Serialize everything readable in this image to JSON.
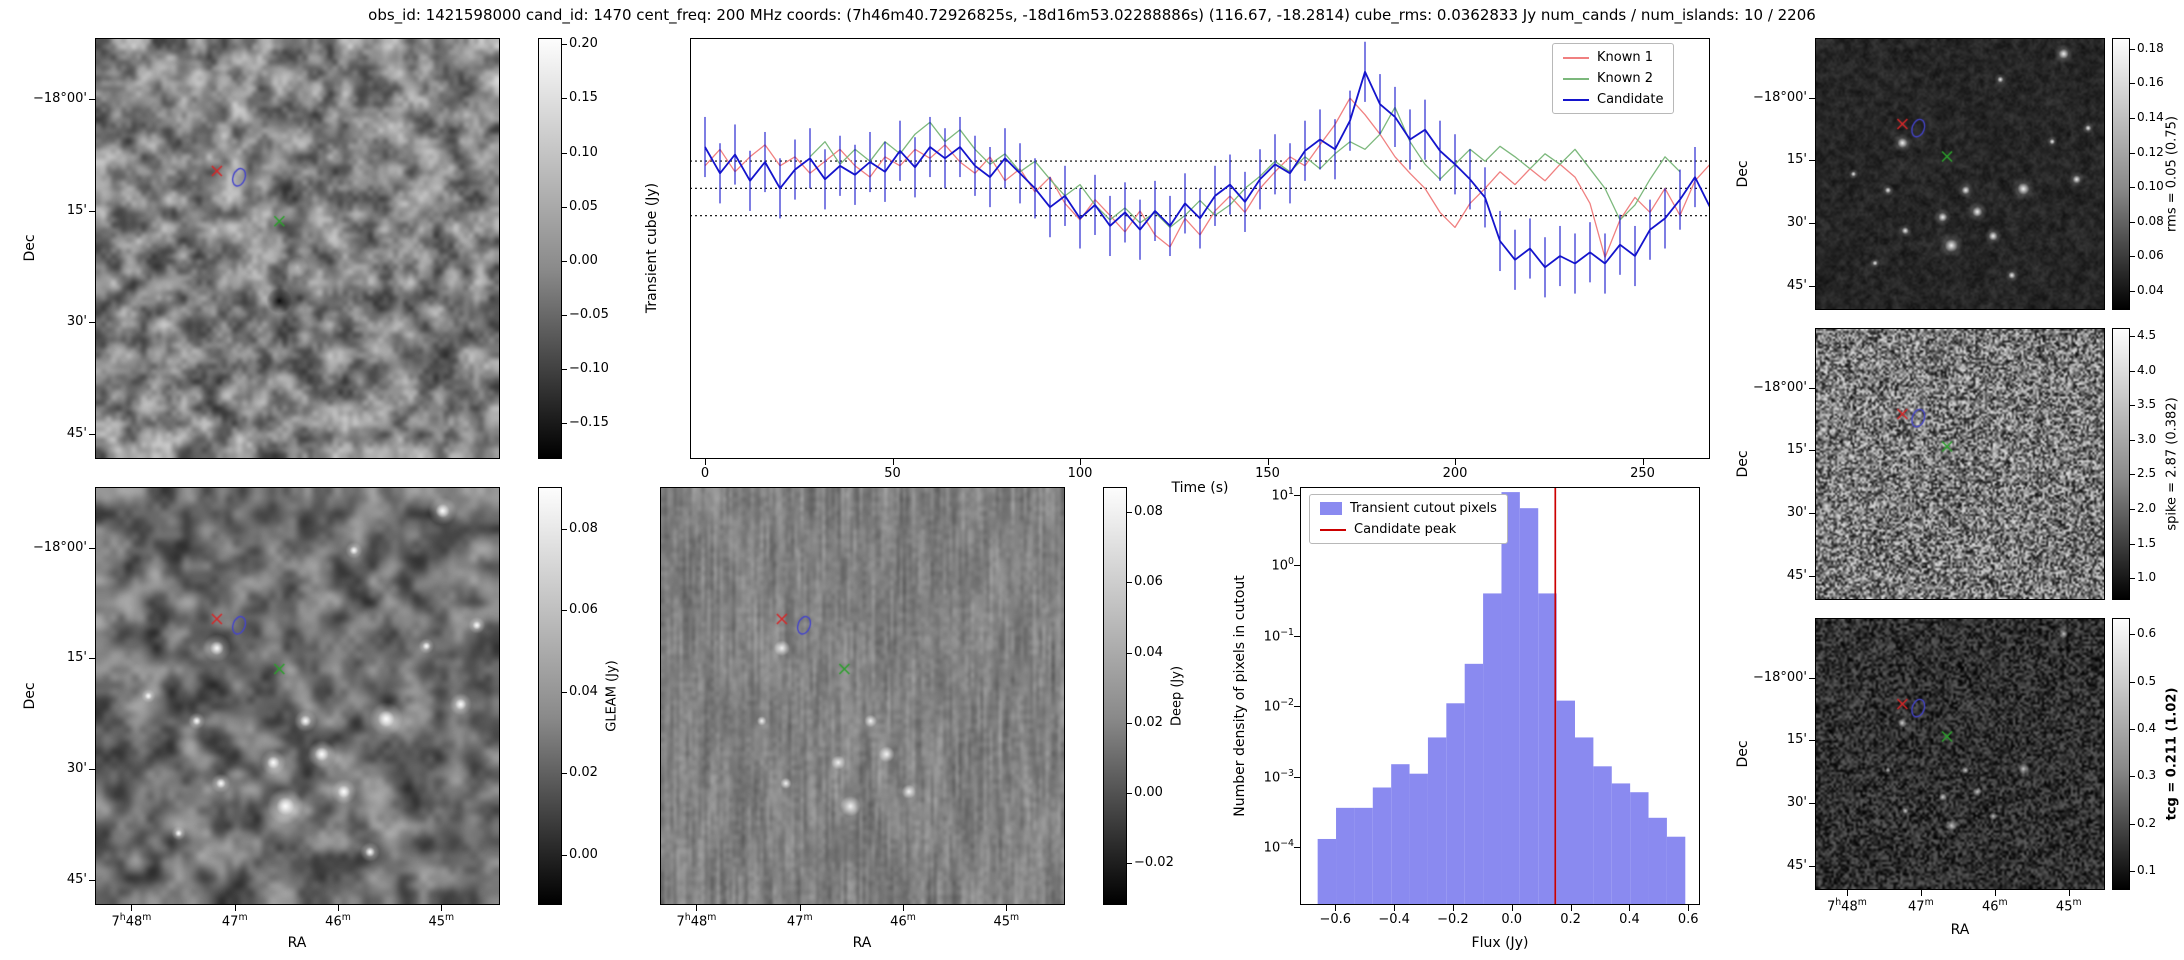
{
  "title": "obs_id: 1421598000 cand_id: 1470 cent_freq: 200 MHz coords: (7h46m40.72926825s, -18d16m53.02288886s) (116.67, -18.2814) cube_rms: 0.0362833 Jy num_cands / num_islands: 10 / 2206",
  "axis": {
    "dec_label": "Dec",
    "ra_label": "RA",
    "dec_ticks": [
      "−18°00'",
      "15'",
      "30'",
      "45'"
    ],
    "ra_ticks": [
      "7h48m",
      "47m",
      "46m",
      "45m"
    ]
  },
  "markers": {
    "red_cross": {
      "x": 0.3,
      "y": 0.315,
      "color": "#d62728"
    },
    "blue_ellipse": {
      "x": 0.355,
      "y": 0.33,
      "color": "#4444cc"
    },
    "green_cross": {
      "x": 0.455,
      "y": 0.435,
      "color": "#2ca02c"
    }
  },
  "image_panels": [
    {
      "id": "transient-cube",
      "style": "smooth",
      "colorbar": {
        "ticks": [
          "0.20",
          "0.15",
          "0.10",
          "0.05",
          "0.00",
          "−0.05",
          "−0.10",
          "−0.15"
        ],
        "label": ""
      }
    },
    {
      "id": "gleam",
      "style": "blobby",
      "colorbar": {
        "ticks": [
          "0.08",
          "0.06",
          "0.04",
          "0.02",
          "0.00"
        ],
        "label": "GLEAM (Jy)"
      }
    },
    {
      "id": "deep",
      "style": "streaky",
      "colorbar": {
        "ticks": [
          "0.08",
          "0.06",
          "0.04",
          "0.02",
          "0.00",
          "−0.02"
        ],
        "label": "Deep (Jy)"
      }
    },
    {
      "id": "rms",
      "style": "dark-sources",
      "colorbar": {
        "ticks": [
          "0.18",
          "0.16",
          "0.14",
          "0.12",
          "0.10",
          "0.08",
          "0.06",
          "0.04"
        ],
        "label": "rms = 0.05 (0.75)"
      }
    },
    {
      "id": "spike",
      "style": "speckle",
      "colorbar": {
        "ticks": [
          "4.5",
          "4.0",
          "3.5",
          "3.0",
          "2.5",
          "2.0",
          "1.5",
          "1.0"
        ],
        "label": "spike = 2.87 (0.382)"
      }
    },
    {
      "id": "tcg",
      "style": "dark-speckle",
      "colorbar": {
        "ticks": [
          "0.6",
          "0.5",
          "0.4",
          "0.3",
          "0.2",
          "0.1"
        ],
        "label": "tcg = 0.211 (1.02)",
        "label_bold": true
      }
    }
  ],
  "chart_data": [
    {
      "type": "line",
      "xlabel": "Time (s)",
      "ylabel": "Transient cube (Jy)",
      "xlim": [
        -4,
        268
      ],
      "ylim": [
        -0.36,
        0.2
      ],
      "xticks": [
        0,
        50,
        100,
        150,
        200,
        250
      ],
      "threshold_lines": [
        0.0363,
        0.0,
        -0.0363
      ],
      "legend_position": "top-right",
      "series": [
        {
          "name": "Known 1",
          "color": "#f08080",
          "x_start": 0,
          "x_step": 4,
          "y": [
            0.03,
            0.052,
            0.022,
            0.042,
            0.058,
            0.03,
            0.042,
            0.02,
            0.036,
            0.052,
            0.03,
            0.015,
            0.042,
            0.03,
            0.052,
            0.04,
            0.058,
            0.035,
            0.02,
            0.042,
            0.01,
            0.026,
            -0.005,
            0.015,
            -0.02,
            -0.042,
            -0.015,
            -0.036,
            -0.058,
            -0.03,
            -0.062,
            -0.078,
            -0.04,
            -0.062,
            -0.03,
            -0.01,
            -0.032,
            0.0,
            0.022,
            0.042,
            0.03,
            0.058,
            0.085,
            0.12,
            0.098,
            0.072,
            0.042,
            0.02,
            0.0,
            -0.032,
            -0.052,
            -0.02,
            0.0,
            0.022,
            0.005,
            0.026,
            0.01,
            0.032,
            0.015,
            -0.02,
            -0.092,
            -0.042,
            -0.012,
            -0.032,
            0.0,
            -0.036,
            0.01,
            0.032
          ]
        },
        {
          "name": "Known 2",
          "color": "#7cb87c",
          "x_start": 28,
          "x_step": 4,
          "y": [
            0.042,
            0.062,
            0.032,
            0.052,
            0.036,
            0.062,
            0.046,
            0.072,
            0.088,
            0.062,
            0.078,
            0.052,
            0.032,
            0.046,
            0.022,
            0.036,
            0.012,
            -0.01,
            0.005,
            -0.022,
            -0.042,
            -0.026,
            -0.046,
            -0.032,
            -0.052,
            -0.036,
            -0.016,
            -0.036,
            -0.022,
            0.0,
            0.016,
            0.036,
            0.022,
            0.042,
            0.026,
            0.046,
            0.062,
            0.052,
            0.072,
            0.108,
            0.062,
            0.032,
            0.012,
            0.032,
            0.052,
            0.036,
            0.056,
            0.042,
            0.026,
            0.046,
            0.032,
            0.052,
            0.026,
            0.0,
            -0.042,
            -0.022,
            0.012,
            0.042,
            0.022
          ]
        },
        {
          "name": "Candidate",
          "color": "#1414cc",
          "yerr": 0.04,
          "x_start": 0,
          "x_step": 4,
          "y": [
            0.055,
            0.02,
            0.045,
            0.01,
            0.035,
            0.0,
            0.025,
            0.04,
            0.012,
            0.03,
            0.018,
            0.035,
            0.022,
            0.05,
            0.028,
            0.055,
            0.04,
            0.055,
            0.03,
            0.015,
            0.04,
            0.02,
            0.0,
            -0.025,
            -0.01,
            -0.04,
            -0.022,
            -0.05,
            -0.032,
            -0.055,
            -0.03,
            -0.05,
            -0.02,
            -0.04,
            -0.01,
            0.005,
            -0.018,
            0.012,
            0.032,
            0.02,
            0.05,
            0.065,
            0.052,
            0.09,
            0.155,
            0.112,
            0.095,
            0.065,
            0.078,
            0.05,
            0.032,
            0.012,
            -0.012,
            -0.07,
            -0.095,
            -0.08,
            -0.105,
            -0.09,
            -0.1,
            -0.085,
            -0.1,
            -0.075,
            -0.09,
            -0.055,
            -0.04,
            -0.015,
            0.015,
            -0.025
          ]
        }
      ]
    },
    {
      "type": "histogram",
      "xlabel": "Flux (Jy)",
      "ylabel": "Number density of pixels in cutout",
      "yscale": "log",
      "xlim": [
        -0.72,
        0.64
      ],
      "ylim": [
        1.5e-05,
        13
      ],
      "xticks": [
        -0.6,
        -0.4,
        -0.2,
        0.0,
        0.2,
        0.4,
        0.6
      ],
      "ytick_exponents": [
        1,
        0,
        -1,
        -2,
        -3,
        -4
      ],
      "bin_start": -0.66,
      "bin_width": 0.0625,
      "counts": [
        0.00013,
        0.00036,
        0.00036,
        0.0007,
        0.0015,
        0.0011,
        0.0036,
        0.011,
        0.04,
        0.4,
        11,
        6.5,
        0.4,
        0.012,
        0.0036,
        0.0014,
        0.0008,
        0.0006,
        0.00026,
        0.00014
      ],
      "bar_color": "#8a8af0",
      "candidate_peak": 0.148,
      "peak_color": "#cc0000",
      "legend": [
        "Transient cutout pixels",
        "Candidate peak"
      ]
    }
  ]
}
